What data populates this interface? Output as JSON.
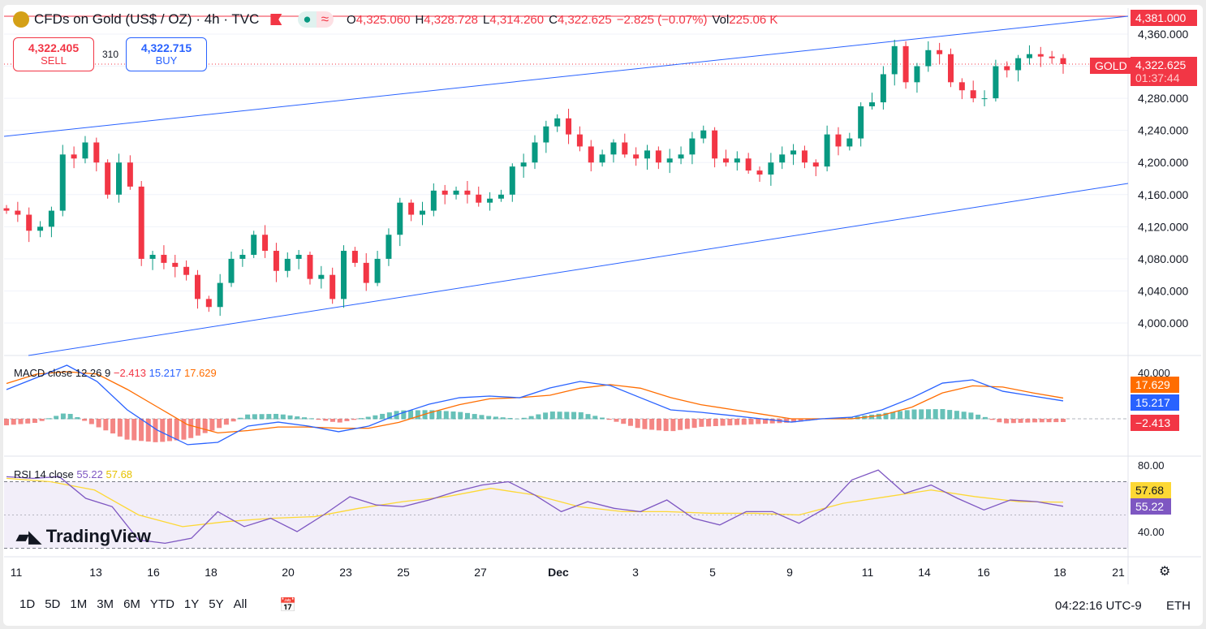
{
  "header": {
    "title": "CFDs on Gold (US$ / OZ) · 4h · TVC",
    "open_label": "O",
    "open": "4,325.060",
    "high_label": "H",
    "high": "4,328.728",
    "low_label": "L",
    "low": "4,314.260",
    "close_label": "C",
    "close": "4,322.625",
    "change": "−2.825 (−0.07%)",
    "vol_label": "Vol",
    "vol": "225.06 K"
  },
  "trade": {
    "sell_price": "4,322.405",
    "sell_label": "SELL",
    "spread": "310",
    "buy_price": "4,322.715",
    "buy_label": "BUY"
  },
  "price_axis": {
    "ticks": [
      "4,360.000",
      "4,280.000",
      "4,240.000",
      "4,200.000",
      "4,160.000",
      "4,120.000",
      "4,080.000",
      "4,040.000",
      "4,000.000"
    ],
    "high_tag": "4,381.000",
    "symbol_tag": "GOLD",
    "last_price": "4,322.625",
    "countdown": "01:37:44"
  },
  "colors": {
    "up": "#089981",
    "down": "#f23645",
    "trendline": "#2962ff",
    "macd": "#2962ff",
    "signal": "#ff6d00",
    "rsi": "#7e57c2",
    "rsi_ma": "#fdd835"
  },
  "macd": {
    "label": "MACD close 12 26 9",
    "hist": "−2.413",
    "macd": "15.217",
    "signal": "17.629",
    "axis_tick": "40.000"
  },
  "rsi": {
    "label": "RSI 14 close",
    "rsi": "55.22",
    "ma": "57.68",
    "ticks": [
      "80.00",
      "40.00"
    ]
  },
  "x_axis": {
    "labels": [
      "11",
      "13",
      "16",
      "18",
      "20",
      "23",
      "25",
      "27",
      "Dec",
      "3",
      "5",
      "9",
      "11",
      "14",
      "16",
      "18",
      "21"
    ]
  },
  "logo": "TradingView",
  "toolbar": {
    "ranges": [
      "1D",
      "5D",
      "1M",
      "3M",
      "6M",
      "YTD",
      "1Y",
      "5Y",
      "All"
    ],
    "time": "04:22:16 UTC-9",
    "session": "ETH"
  },
  "chart_data": {
    "type": "candlestick",
    "timeframe": "4h",
    "ylim": [
      3960,
      4390
    ],
    "closes": [
      4140,
      4135,
      4115,
      4120,
      4140,
      4210,
      4205,
      4225,
      4200,
      4160,
      4200,
      4170,
      4080,
      4085,
      4075,
      4070,
      4060,
      4030,
      4020,
      4050,
      4080,
      4085,
      4110,
      4090,
      4065,
      4080,
      4085,
      4055,
      4060,
      4030,
      4090,
      4075,
      4050,
      4080,
      4110,
      4150,
      4135,
      4140,
      4165,
      4160,
      4165,
      4160,
      4150,
      4155,
      4160,
      4195,
      4200,
      4225,
      4245,
      4255,
      4235,
      4220,
      4200,
      4210,
      4225,
      4210,
      4205,
      4215,
      4200,
      4205,
      4210,
      4230,
      4240,
      4205,
      4200,
      4205,
      4190,
      4185,
      4200,
      4210,
      4215,
      4200,
      4195,
      4235,
      4220,
      4230,
      4270,
      4275,
      4310,
      4345,
      4300,
      4320,
      4340,
      4335,
      4300,
      4290,
      4280,
      4280,
      4320,
      4315,
      4330,
      4335,
      4332,
      4330,
      4322.625
    ],
    "macd_line": [
      24.8,
      35,
      45.5,
      31.7,
      7.6,
      -9.7,
      -22,
      -20,
      -6.2,
      -2.8,
      -6.2,
      -11,
      -6.2,
      4.1,
      12.4,
      17.9,
      19.3,
      17.9,
      26.2,
      31.7,
      28.3,
      17.9,
      7.6,
      5.5,
      2.8,
      0,
      -2.8,
      0,
      1.4,
      7.6,
      17.9,
      30.3,
      33.1,
      23.4,
      19.3,
      15.217
    ],
    "signal_line": [
      30,
      38,
      40,
      38,
      25,
      10,
      -5,
      -12,
      -10,
      -7,
      -7,
      -8,
      -8,
      -3,
      5,
      12,
      17,
      18,
      20,
      26,
      29,
      26,
      18,
      12,
      8,
      4,
      0,
      0,
      0,
      3,
      10,
      22,
      28,
      27,
      22,
      17.629
    ],
    "rsi_line": [
      73,
      72,
      73,
      60,
      55,
      35,
      33,
      36,
      52,
      43,
      48,
      40,
      50,
      61,
      56,
      55,
      59,
      64,
      68,
      70,
      62,
      52,
      58,
      54,
      52,
      59,
      48,
      44,
      52,
      52,
      45,
      54,
      71,
      77,
      63,
      68,
      60,
      53,
      59,
      58,
      55.22
    ],
    "rsi_ma": [
      72,
      70,
      65,
      50,
      43,
      46,
      48,
      49,
      54,
      58,
      61,
      66,
      62,
      55,
      52,
      52,
      51,
      51,
      50,
      57,
      61,
      65,
      61,
      58,
      57.68
    ],
    "rsi_bands": [
      70,
      30
    ]
  }
}
